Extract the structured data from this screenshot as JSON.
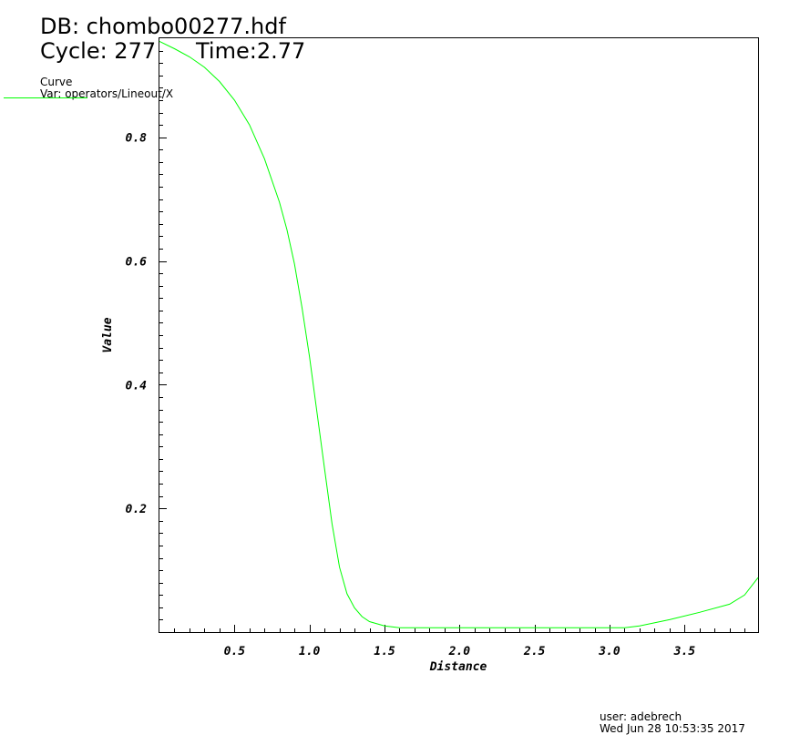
{
  "header": {
    "db_label": "DB: chombo00277.hdf",
    "cycle_label": "Cycle: 277",
    "time_label": "Time:2.77"
  },
  "legend": {
    "title": "Curve",
    "var": "Var: operators/Lineout/X",
    "line_color": "#00ff00"
  },
  "footer": {
    "user": "user: adebrech",
    "date": "Wed Jun 28 10:53:35 2017"
  },
  "chart_data": {
    "type": "line",
    "title": "",
    "xlabel": "Distance",
    "ylabel": "Value",
    "xlim": [
      0.0,
      3.99
    ],
    "ylim": [
      0.0,
      0.96
    ],
    "x_ticks": [
      "0.5",
      "1.0",
      "1.5",
      "2.0",
      "2.5",
      "3.0",
      "3.5"
    ],
    "y_ticks": [
      "0.2",
      "0.4",
      "0.6",
      "0.8"
    ],
    "grid": false,
    "series": [
      {
        "color": "#00ff00",
        "x": [
          0.0,
          0.1,
          0.2,
          0.3,
          0.4,
          0.5,
          0.6,
          0.7,
          0.8,
          0.85,
          0.9,
          0.95,
          1.0,
          1.05,
          1.1,
          1.15,
          1.2,
          1.25,
          1.3,
          1.35,
          1.4,
          1.5,
          1.6,
          1.8,
          2.0,
          2.5,
          3.0,
          3.1,
          3.2,
          3.4,
          3.6,
          3.8,
          3.9,
          3.99
        ],
        "y": [
          0.955,
          0.943,
          0.93,
          0.913,
          0.89,
          0.86,
          0.82,
          0.765,
          0.695,
          0.65,
          0.595,
          0.525,
          0.445,
          0.355,
          0.265,
          0.175,
          0.105,
          0.062,
          0.039,
          0.025,
          0.017,
          0.01,
          0.007,
          0.007,
          0.007,
          0.007,
          0.007,
          0.007,
          0.01,
          0.02,
          0.032,
          0.045,
          0.06,
          0.088
        ]
      }
    ]
  }
}
